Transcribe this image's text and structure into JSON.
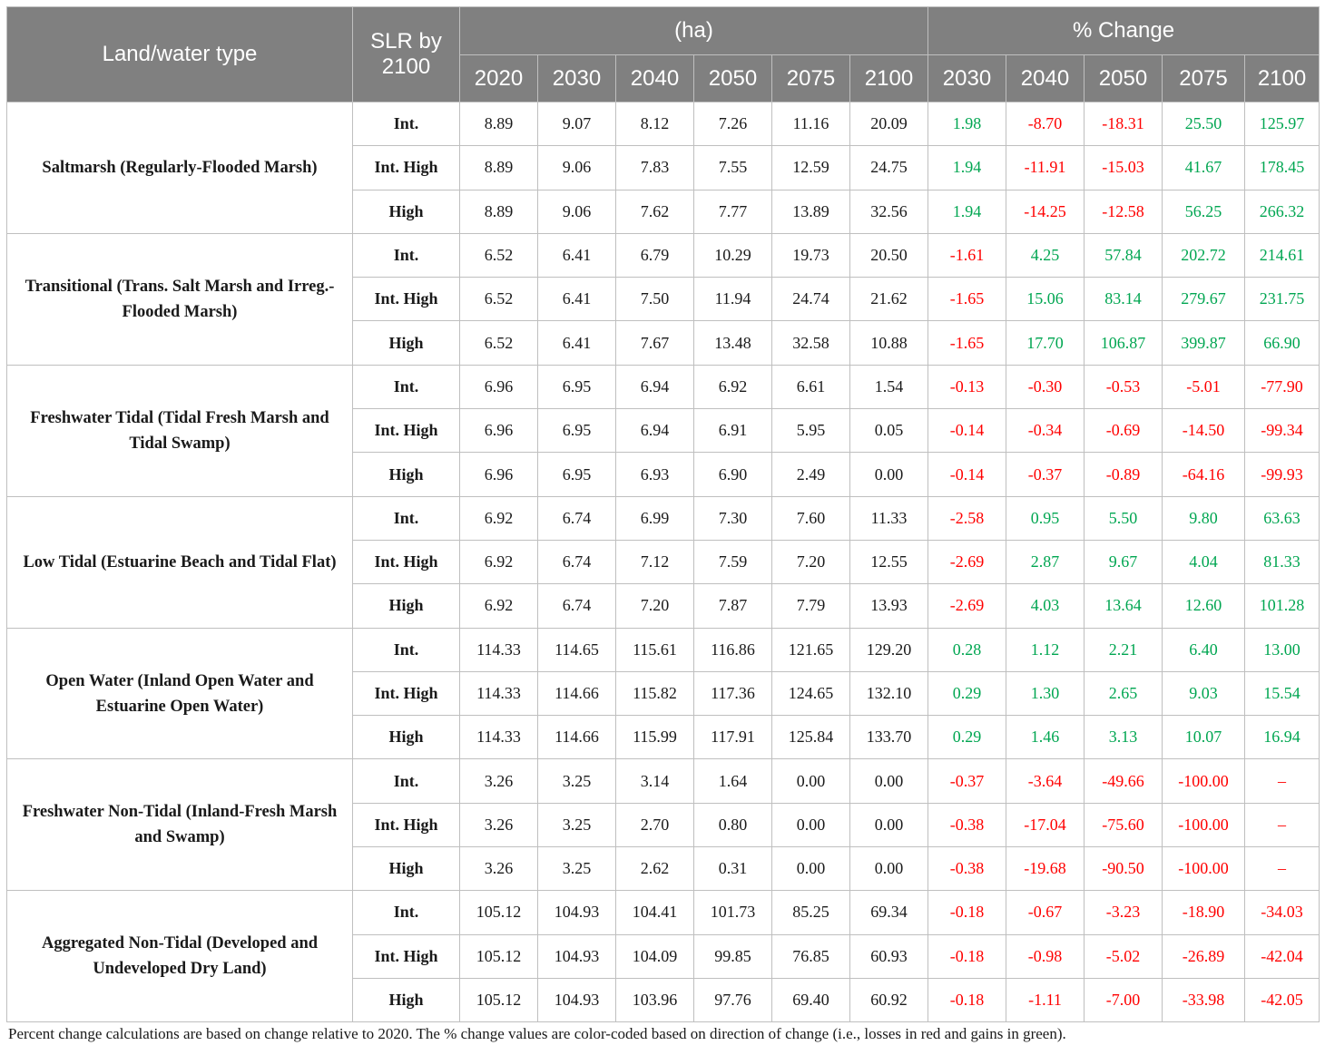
{
  "header": {
    "land_water_type": "Land/water type",
    "slr_line1": "SLR by",
    "slr_line2": "2100",
    "ha_group": "(ha)",
    "pct_group": "% Change",
    "ha_years": [
      "2020",
      "2030",
      "2040",
      "2050",
      "2075",
      "2100"
    ],
    "pct_years": [
      "2030",
      "2040",
      "2050",
      "2075",
      "2100"
    ]
  },
  "groups": [
    {
      "label": "Saltmarsh (Regularly-Flooded Marsh)",
      "rows": [
        {
          "slr": "Int.",
          "ha": [
            "8.89",
            "9.07",
            "8.12",
            "7.26",
            "11.16",
            "20.09"
          ],
          "pct": [
            "1.98",
            "-8.70",
            "-18.31",
            "25.50",
            "125.97"
          ]
        },
        {
          "slr": "Int. High",
          "ha": [
            "8.89",
            "9.06",
            "7.83",
            "7.55",
            "12.59",
            "24.75"
          ],
          "pct": [
            "1.94",
            "-11.91",
            "-15.03",
            "41.67",
            "178.45"
          ]
        },
        {
          "slr": "High",
          "ha": [
            "8.89",
            "9.06",
            "7.62",
            "7.77",
            "13.89",
            "32.56"
          ],
          "pct": [
            "1.94",
            "-14.25",
            "-12.58",
            "56.25",
            "266.32"
          ]
        }
      ]
    },
    {
      "label": "Transitional (Trans. Salt Marsh and Irreg.-Flooded Marsh)",
      "rows": [
        {
          "slr": "Int.",
          "ha": [
            "6.52",
            "6.41",
            "6.79",
            "10.29",
            "19.73",
            "20.50"
          ],
          "pct": [
            "-1.61",
            "4.25",
            "57.84",
            "202.72",
            "214.61"
          ]
        },
        {
          "slr": "Int. High",
          "ha": [
            "6.52",
            "6.41",
            "7.50",
            "11.94",
            "24.74",
            "21.62"
          ],
          "pct": [
            "-1.65",
            "15.06",
            "83.14",
            "279.67",
            "231.75"
          ]
        },
        {
          "slr": "High",
          "ha": [
            "6.52",
            "6.41",
            "7.67",
            "13.48",
            "32.58",
            "10.88"
          ],
          "pct": [
            "-1.65",
            "17.70",
            "106.87",
            "399.87",
            "66.90"
          ]
        }
      ]
    },
    {
      "label": "Freshwater Tidal (Tidal Fresh Marsh and Tidal Swamp)",
      "rows": [
        {
          "slr": "Int.",
          "ha": [
            "6.96",
            "6.95",
            "6.94",
            "6.92",
            "6.61",
            "1.54"
          ],
          "pct": [
            "-0.13",
            "-0.30",
            "-0.53",
            "-5.01",
            "-77.90"
          ]
        },
        {
          "slr": "Int. High",
          "ha": [
            "6.96",
            "6.95",
            "6.94",
            "6.91",
            "5.95",
            "0.05"
          ],
          "pct": [
            "-0.14",
            "-0.34",
            "-0.69",
            "-14.50",
            "-99.34"
          ]
        },
        {
          "slr": "High",
          "ha": [
            "6.96",
            "6.95",
            "6.93",
            "6.90",
            "2.49",
            "0.00"
          ],
          "pct": [
            "-0.14",
            "-0.37",
            "-0.89",
            "-64.16",
            "-99.93"
          ]
        }
      ]
    },
    {
      "label": "Low Tidal (Estuarine Beach and Tidal Flat)",
      "rows": [
        {
          "slr": "Int.",
          "ha": [
            "6.92",
            "6.74",
            "6.99",
            "7.30",
            "7.60",
            "11.33"
          ],
          "pct": [
            "-2.58",
            "0.95",
            "5.50",
            "9.80",
            "63.63"
          ]
        },
        {
          "slr": "Int. High",
          "ha": [
            "6.92",
            "6.74",
            "7.12",
            "7.59",
            "7.20",
            "12.55"
          ],
          "pct": [
            "-2.69",
            "2.87",
            "9.67",
            "4.04",
            "81.33"
          ]
        },
        {
          "slr": "High",
          "ha": [
            "6.92",
            "6.74",
            "7.20",
            "7.87",
            "7.79",
            "13.93"
          ],
          "pct": [
            "-2.69",
            "4.03",
            "13.64",
            "12.60",
            "101.28"
          ]
        }
      ]
    },
    {
      "label": "Open Water (Inland Open Water and Estuarine Open Water)",
      "rows": [
        {
          "slr": "Int.",
          "ha": [
            "114.33",
            "114.65",
            "115.61",
            "116.86",
            "121.65",
            "129.20"
          ],
          "pct": [
            "0.28",
            "1.12",
            "2.21",
            "6.40",
            "13.00"
          ]
        },
        {
          "slr": "Int. High",
          "ha": [
            "114.33",
            "114.66",
            "115.82",
            "117.36",
            "124.65",
            "132.10"
          ],
          "pct": [
            "0.29",
            "1.30",
            "2.65",
            "9.03",
            "15.54"
          ]
        },
        {
          "slr": "High",
          "ha": [
            "114.33",
            "114.66",
            "115.99",
            "117.91",
            "125.84",
            "133.70"
          ],
          "pct": [
            "0.29",
            "1.46",
            "3.13",
            "10.07",
            "16.94"
          ]
        }
      ]
    },
    {
      "label": "Freshwater Non-Tidal (Inland-Fresh Marsh and Swamp)",
      "rows": [
        {
          "slr": "Int.",
          "ha": [
            "3.26",
            "3.25",
            "3.14",
            "1.64",
            "0.00",
            "0.00"
          ],
          "pct": [
            "-0.37",
            "-3.64",
            "-49.66",
            "-100.00",
            "–"
          ]
        },
        {
          "slr": "Int. High",
          "ha": [
            "3.26",
            "3.25",
            "2.70",
            "0.80",
            "0.00",
            "0.00"
          ],
          "pct": [
            "-0.38",
            "-17.04",
            "-75.60",
            "-100.00",
            "–"
          ]
        },
        {
          "slr": "High",
          "ha": [
            "3.26",
            "3.25",
            "2.62",
            "0.31",
            "0.00",
            "0.00"
          ],
          "pct": [
            "-0.38",
            "-19.68",
            "-90.50",
            "-100.00",
            "–"
          ]
        }
      ]
    },
    {
      "label": "Aggregated Non-Tidal (Developed and Undeveloped Dry Land)",
      "rows": [
        {
          "slr": "Int.",
          "ha": [
            "105.12",
            "104.93",
            "104.41",
            "101.73",
            "85.25",
            "69.34"
          ],
          "pct": [
            "-0.18",
            "-0.67",
            "-3.23",
            "-18.90",
            "-34.03"
          ]
        },
        {
          "slr": "Int. High",
          "ha": [
            "105.12",
            "104.93",
            "104.09",
            "99.85",
            "76.85",
            "60.93"
          ],
          "pct": [
            "-0.18",
            "-0.98",
            "-5.02",
            "-26.89",
            "-42.04"
          ]
        },
        {
          "slr": "High",
          "ha": [
            "105.12",
            "104.93",
            "103.96",
            "97.76",
            "69.40",
            "60.92"
          ],
          "pct": [
            "-0.18",
            "-1.11",
            "-7.00",
            "-33.98",
            "-42.05"
          ]
        }
      ]
    }
  ],
  "colors": {
    "header_bg": "#808080",
    "loss": "#ff0000",
    "gain": "#00a651"
  },
  "footnote": "Percent change calculations are based on change relative to 2020. The % change values are color-coded based on direction of change (i.e., losses in red and gains in green)."
}
